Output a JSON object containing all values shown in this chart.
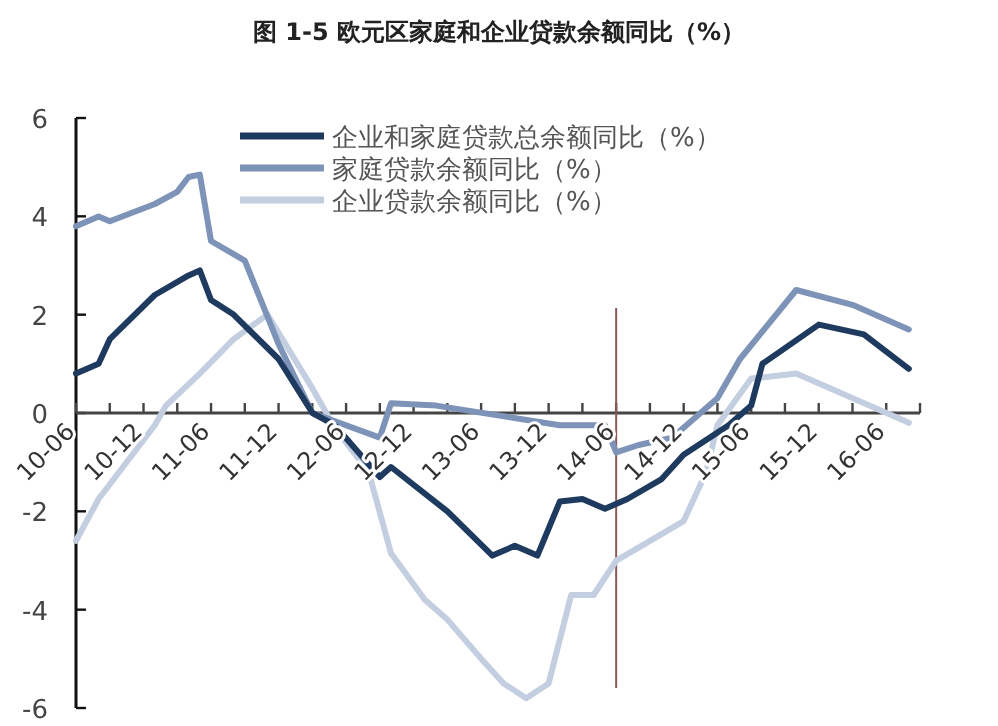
{
  "chart_data": {
    "type": "line",
    "title": "图 1-5  欧元区家庭和企业贷款余额同比（%）",
    "xlim": [
      "2010-06",
      "2016-09"
    ],
    "xticks": [
      {
        "value": "2010-06",
        "label": "10-06"
      },
      {
        "value": "2010-09",
        "label": null
      },
      {
        "value": "2010-12",
        "label": "10-12"
      },
      {
        "value": "2011-03",
        "label": null
      },
      {
        "value": "2011-06",
        "label": "11-06"
      },
      {
        "value": "2011-09",
        "label": null
      },
      {
        "value": "2011-12",
        "label": "11-12"
      },
      {
        "value": "2012-03",
        "label": null
      },
      {
        "value": "2012-06",
        "label": "12-06"
      },
      {
        "value": "2012-09",
        "label": null
      },
      {
        "value": "2012-12",
        "label": "12-12"
      },
      {
        "value": "2013-03",
        "label": null
      },
      {
        "value": "2013-06",
        "label": "13-06"
      },
      {
        "value": "2013-09",
        "label": null
      },
      {
        "value": "2013-12",
        "label": "13-12"
      },
      {
        "value": "2014-03",
        "label": null
      },
      {
        "value": "2014-06",
        "label": "14-06"
      },
      {
        "value": "2014-09",
        "label": null
      },
      {
        "value": "2014-12",
        "label": "14-12"
      },
      {
        "value": "2015-03",
        "label": null
      },
      {
        "value": "2015-06",
        "label": "15-06"
      },
      {
        "value": "2015-09",
        "label": null
      },
      {
        "value": "2015-12",
        "label": "15-12"
      },
      {
        "value": "2016-03",
        "label": null
      },
      {
        "value": "2016-06",
        "label": "16-06"
      },
      {
        "value": "2016-09",
        "label": null
      }
    ],
    "ylim": [
      -6,
      6
    ],
    "yticks": [
      -6,
      -4,
      -2,
      0,
      2,
      4,
      6
    ],
    "legend": "top",
    "grid": false,
    "ref_lines": [
      {
        "axis": "x",
        "value": "2014-06",
        "color": "#8a5a5a"
      }
    ],
    "series": [
      {
        "name": "企业和家庭贷款总余额同比（%）",
        "color": "#1f3a5f",
        "x": [
          "2010-06",
          "2010-08",
          "2010-09",
          "2011-01",
          "2011-04",
          "2011-05",
          "2011-06",
          "2011-08",
          "2011-12",
          "2012-03",
          "2012-05",
          "2012-09",
          "2012-10",
          "2013-03",
          "2013-07",
          "2013-09",
          "2013-11",
          "2014-01",
          "2014-03",
          "2014-05",
          "2014-07",
          "2014-10",
          "2014-12",
          "2015-04",
          "2015-06",
          "2015-07",
          "2015-12",
          "2016-04",
          "2016-08"
        ],
        "values": [
          0.8,
          1.0,
          1.5,
          2.4,
          2.8,
          2.9,
          2.3,
          2.0,
          1.1,
          0,
          -0.25,
          -1.3,
          -1.1,
          -2.0,
          -2.9,
          -2.7,
          -2.9,
          -1.8,
          -1.75,
          -1.95,
          -1.75,
          -1.35,
          -0.85,
          -0.25,
          0.15,
          1.0,
          1.8,
          1.6,
          0.9
        ]
      },
      {
        "name": "家庭贷款余额同比（%）",
        "color": "#7d93b8",
        "x": [
          "2010-06",
          "2010-08",
          "2010-09",
          "2011-01",
          "2011-03",
          "2011-04",
          "2011-05",
          "2011-06",
          "2011-09",
          "2011-12",
          "2012-03",
          "2012-09",
          "2012-10",
          "2013-02",
          "2014-01",
          "2014-05",
          "2014-06",
          "2014-08",
          "2014-11",
          "2015-03",
          "2015-05",
          "2015-10",
          "2016-03",
          "2016-08"
        ],
        "values": [
          3.8,
          4.0,
          3.9,
          4.25,
          4.5,
          4.8,
          4.85,
          3.5,
          3.1,
          1.4,
          0,
          -0.5,
          0.2,
          0.15,
          -0.25,
          -0.25,
          -0.8,
          -0.65,
          -0.5,
          0.3,
          1.1,
          2.5,
          2.2,
          1.7
        ]
      },
      {
        "name": "企业贷款余额同比（%）",
        "color": "#c3cfe0",
        "x": [
          "2010-06",
          "2010-08",
          "2011-01",
          "2011-02",
          "2011-05",
          "2011-08",
          "2011-11",
          "2012-03",
          "2012-05",
          "2012-08",
          "2012-10",
          "2013-01",
          "2013-03",
          "2013-06",
          "2013-08",
          "2013-10",
          "2013-12",
          "2014-02",
          "2014-04",
          "2014-06",
          "2014-09",
          "2014-12",
          "2015-02",
          "2015-03",
          "2015-06",
          "2015-10",
          "2016-08"
        ],
        "values": [
          -2.6,
          -1.75,
          -0.25,
          0.15,
          0.8,
          1.5,
          2.0,
          0.5,
          -0.3,
          -1.2,
          -2.85,
          -3.8,
          -4.2,
          -5.0,
          -5.5,
          -5.8,
          -5.5,
          -3.7,
          -3.7,
          -3.0,
          -2.6,
          -2.2,
          -1.2,
          -0.25,
          0.7,
          0.8,
          -0.2
        ]
      }
    ]
  }
}
